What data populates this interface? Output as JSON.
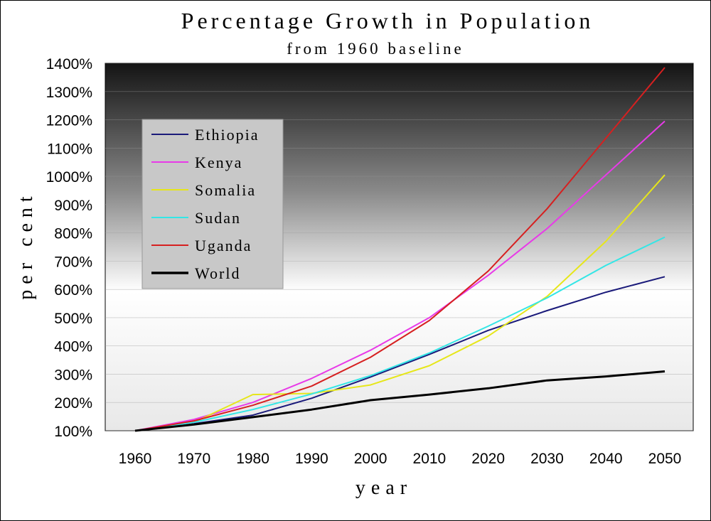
{
  "chart_data": {
    "type": "line",
    "title": "Percentage Growth in Population",
    "subtitle": "from 1960 baseline",
    "xlabel": "year",
    "ylabel": "per cent",
    "x": [
      1960,
      1970,
      1980,
      1990,
      2000,
      2010,
      2020,
      2030,
      2040,
      2050
    ],
    "x_tick_labels": [
      "1960",
      "1970",
      "1980",
      "1990",
      "2000",
      "2010",
      "2020",
      "2030",
      "2040",
      "2050"
    ],
    "y_ticks": [
      100,
      200,
      300,
      400,
      500,
      600,
      700,
      800,
      900,
      1000,
      1100,
      1200,
      1300,
      1400
    ],
    "y_tick_labels": [
      "100%",
      "200%",
      "300%",
      "400%",
      "500%",
      "600%",
      "700%",
      "800%",
      "900%",
      "1000%",
      "1100%",
      "1200%",
      "1300%",
      "1400%"
    ],
    "xlim": [
      1960,
      2050
    ],
    "ylim": [
      100,
      1400
    ],
    "grid": true,
    "legend_position": "top-left",
    "series": [
      {
        "name": "Ethiopia",
        "color": "#1a1a7a",
        "values": [
          100,
          125,
          155,
          215,
          290,
          370,
          455,
          525,
          590,
          645
        ]
      },
      {
        "name": "Kenya",
        "color": "#e83ae8",
        "values": [
          100,
          140,
          200,
          285,
          385,
          500,
          650,
          815,
          1005,
          1195
        ]
      },
      {
        "name": "Somalia",
        "color": "#e6e61a",
        "values": [
          100,
          130,
          228,
          232,
          262,
          330,
          435,
          575,
          770,
          1005
        ]
      },
      {
        "name": "Sudan",
        "color": "#33e6e6",
        "values": [
          100,
          130,
          175,
          230,
          295,
          375,
          470,
          570,
          685,
          785
        ]
      },
      {
        "name": "Uganda",
        "color": "#d62020",
        "values": [
          100,
          135,
          190,
          258,
          360,
          490,
          665,
          885,
          1135,
          1385
        ]
      },
      {
        "name": "World",
        "color": "#000000",
        "values": [
          100,
          122,
          148,
          175,
          208,
          228,
          250,
          278,
          292,
          310
        ]
      }
    ]
  }
}
